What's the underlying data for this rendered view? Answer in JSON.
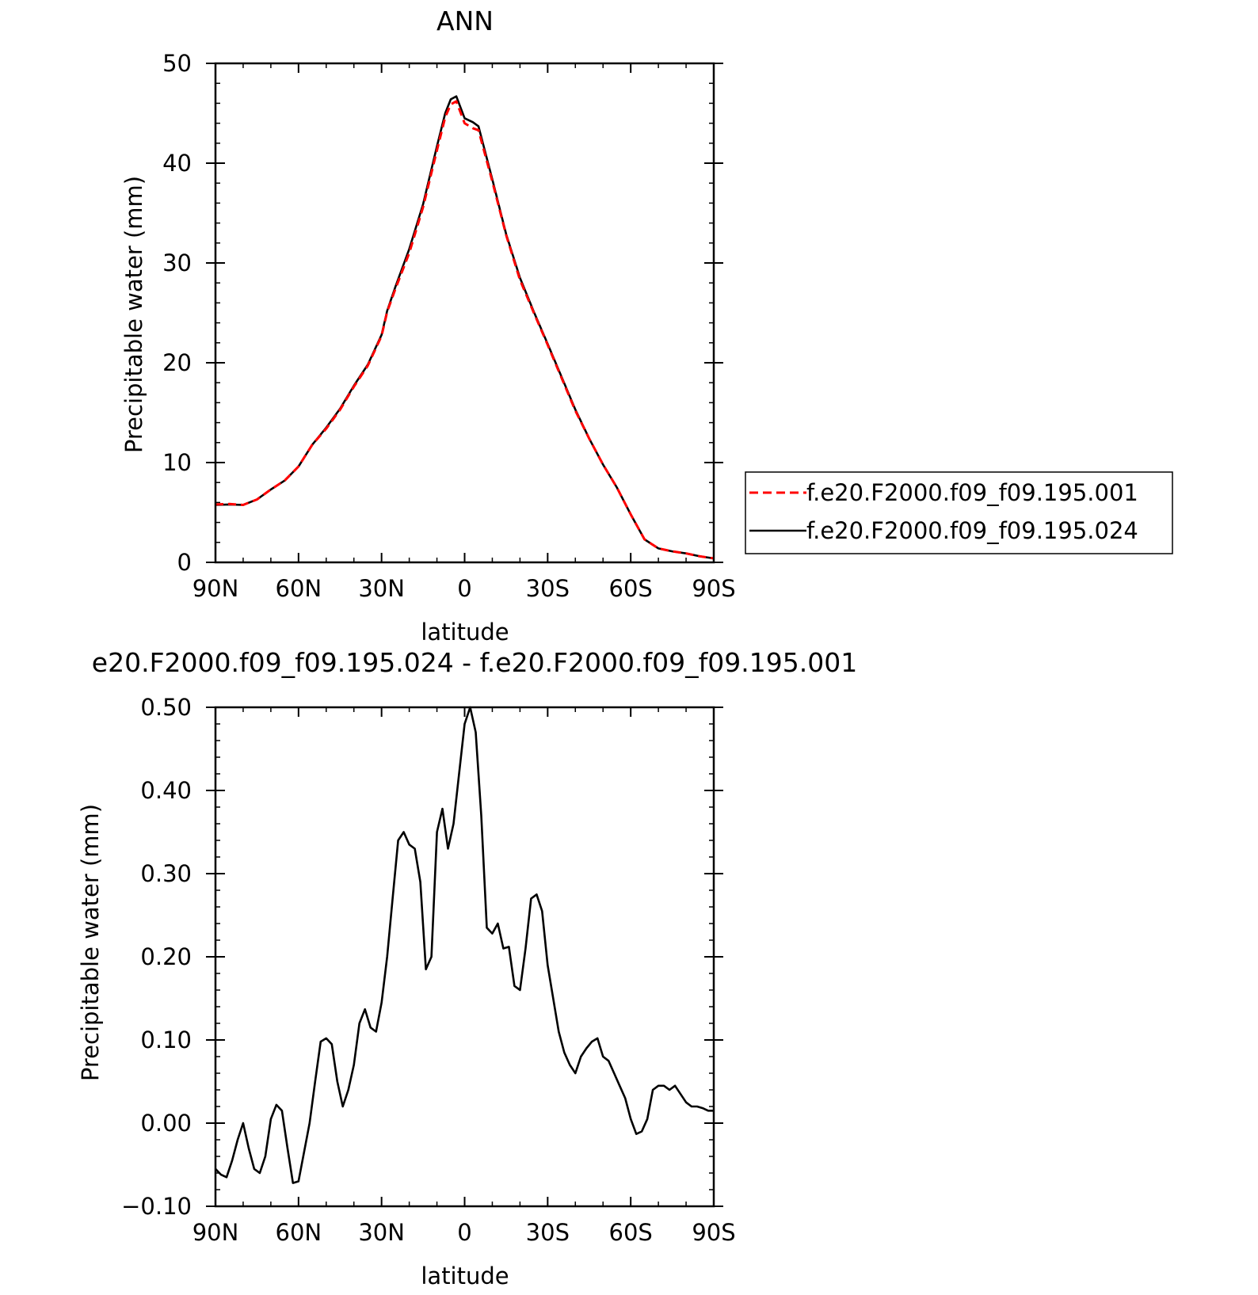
{
  "chart_data": [
    {
      "type": "line",
      "title": "ANN",
      "xlabel": "latitude",
      "ylabel": "Precipitable water (mm)",
      "xlim": [
        90,
        -90
      ],
      "ylim": [
        0,
        50
      ],
      "xticks": [
        90,
        60,
        30,
        0,
        -30,
        -60,
        -90
      ],
      "xtick_labels": [
        "90N",
        "60N",
        "30N",
        "0",
        "30S",
        "60S",
        "90S"
      ],
      "yticks": [
        0,
        10,
        20,
        30,
        40,
        50
      ],
      "ytick_labels": [
        "0",
        "10",
        "20",
        "30",
        "40",
        "50"
      ],
      "grid": false,
      "legend": "right",
      "series": [
        {
          "name": "f.e20.F2000.f09_f09.195.001",
          "color": "#ff0000",
          "style": "dashed",
          "x": [
            90,
            85,
            80,
            75,
            70,
            65,
            60,
            55,
            50,
            45,
            40,
            35,
            30,
            28,
            25,
            20,
            15,
            10,
            7,
            5,
            3,
            0,
            -3,
            -5,
            -10,
            -15,
            -20,
            -25,
            -30,
            -35,
            -40,
            -45,
            -50,
            -55,
            -60,
            -65,
            -70,
            -75,
            -80,
            -85,
            -90
          ],
          "y": [
            5.8,
            5.85,
            5.75,
            6.3,
            7.3,
            8.2,
            9.6,
            11.8,
            13.4,
            15.3,
            17.6,
            19.7,
            22.7,
            25.1,
            27.4,
            31.0,
            35.6,
            41.3,
            44.6,
            45.9,
            46.2,
            44.0,
            43.5,
            43.3,
            38.2,
            32.8,
            28.3,
            25.0,
            21.8,
            18.5,
            15.2,
            12.4,
            9.8,
            7.5,
            4.8,
            2.3,
            1.4,
            1.1,
            0.9,
            0.6,
            0.4
          ]
        },
        {
          "name": "f.e20.F2000.f09_f09.195.024",
          "color": "#000000",
          "style": "solid",
          "x": [
            90,
            85,
            80,
            75,
            70,
            65,
            60,
            55,
            50,
            45,
            40,
            35,
            30,
            28,
            25,
            20,
            15,
            10,
            7,
            5,
            3,
            0,
            -3,
            -5,
            -10,
            -15,
            -20,
            -25,
            -30,
            -35,
            -40,
            -45,
            -50,
            -55,
            -60,
            -65,
            -70,
            -75,
            -80,
            -85,
            -90
          ],
          "y": [
            5.75,
            5.8,
            5.75,
            6.3,
            7.3,
            8.2,
            9.6,
            11.8,
            13.5,
            15.4,
            17.7,
            19.8,
            22.8,
            25.2,
            27.6,
            31.4,
            35.9,
            41.7,
            45.0,
            46.4,
            46.7,
            44.5,
            44.1,
            43.7,
            38.4,
            32.9,
            28.5,
            25.1,
            21.9,
            18.6,
            15.3,
            12.4,
            9.8,
            7.5,
            4.8,
            2.3,
            1.4,
            1.1,
            0.9,
            0.6,
            0.4
          ]
        }
      ]
    },
    {
      "type": "line",
      "title": "e20.F2000.f09_f09.195.024 - f.e20.F2000.f09_f09.195.001",
      "xlabel": "latitude",
      "ylabel": "Precipitable water (mm)",
      "xlim": [
        90,
        -90
      ],
      "ylim": [
        -0.1,
        0.5
      ],
      "xticks": [
        90,
        60,
        30,
        0,
        -30,
        -60,
        -90
      ],
      "xtick_labels": [
        "90N",
        "60N",
        "30N",
        "0",
        "30S",
        "60S",
        "90S"
      ],
      "yticks": [
        -0.1,
        0.0,
        0.1,
        0.2,
        0.3,
        0.4,
        0.5
      ],
      "ytick_labels": [
        "−0.10",
        "0.00",
        "0.10",
        "0.20",
        "0.30",
        "0.40",
        "0.50"
      ],
      "grid": false,
      "series": [
        {
          "color": "#000000",
          "style": "solid",
          "x": [
            90,
            88,
            86,
            84,
            82,
            80,
            78,
            76,
            74,
            72,
            70,
            68,
            66,
            64,
            62,
            60,
            58,
            56,
            54,
            52,
            50,
            48,
            46,
            44,
            42,
            40,
            38,
            36,
            34,
            32,
            30,
            28,
            26,
            24,
            22,
            20,
            18,
            16,
            14,
            12,
            10,
            8,
            6,
            4,
            2,
            0,
            -2,
            -4,
            -6,
            -8,
            -10,
            -12,
            -14,
            -16,
            -18,
            -20,
            -22,
            -24,
            -26,
            -28,
            -30,
            -32,
            -34,
            -36,
            -38,
            -40,
            -42,
            -44,
            -46,
            -48,
            -50,
            -52,
            -54,
            -56,
            -58,
            -60,
            -62,
            -64,
            -66,
            -68,
            -70,
            -72,
            -74,
            -76,
            -78,
            -80,
            -82,
            -84,
            -86,
            -88,
            -90
          ],
          "y": [
            -0.055,
            -0.062,
            -0.065,
            -0.045,
            -0.02,
            0.0,
            -0.03,
            -0.055,
            -0.06,
            -0.04,
            0.005,
            0.022,
            0.015,
            -0.03,
            -0.072,
            -0.07,
            -0.035,
            0.0,
            0.05,
            0.098,
            0.102,
            0.095,
            0.05,
            0.02,
            0.04,
            0.07,
            0.12,
            0.137,
            0.115,
            0.11,
            0.145,
            0.2,
            0.27,
            0.34,
            0.35,
            0.335,
            0.33,
            0.29,
            0.185,
            0.2,
            0.35,
            0.378,
            0.33,
            0.36,
            0.42,
            0.48,
            0.5,
            0.47,
            0.37,
            0.235,
            0.228,
            0.24,
            0.21,
            0.212,
            0.165,
            0.16,
            0.21,
            0.27,
            0.275,
            0.255,
            0.19,
            0.15,
            0.11,
            0.085,
            0.07,
            0.06,
            0.08,
            0.09,
            0.098,
            0.102,
            0.08,
            0.075,
            0.06,
            0.045,
            0.03,
            0.005,
            -0.013,
            -0.01,
            0.005,
            0.04,
            0.045,
            0.045,
            0.04,
            0.045,
            0.035,
            0.025,
            0.02,
            0.02,
            0.018,
            0.015,
            0.015
          ]
        }
      ]
    }
  ]
}
